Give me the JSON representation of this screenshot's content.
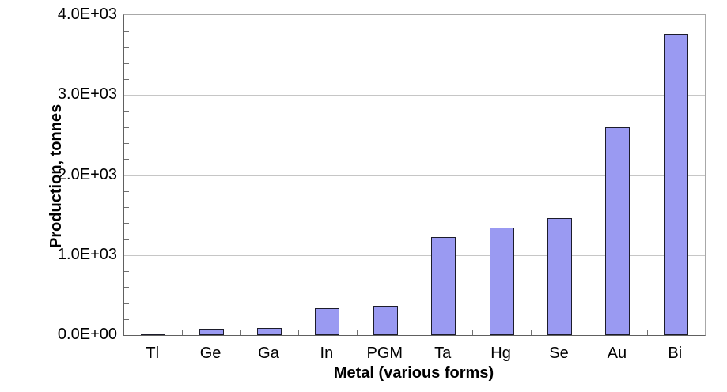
{
  "chart_data": {
    "type": "bar",
    "title": "",
    "categories": [
      "Tl",
      "Ge",
      "Ga",
      "In",
      "PGM",
      "Ta",
      "Hg",
      "Se",
      "Au",
      "Bi"
    ],
    "values": [
      20,
      75,
      90,
      335,
      365,
      1220,
      1340,
      1460,
      2600,
      3760
    ],
    "xlabel": "Metal (various forms)",
    "ylabel": "Production, tonnes",
    "ylim": [
      0,
      4000
    ],
    "y_major_step": 1000,
    "y_minor_step": 200,
    "y_tick_labels": [
      "0.0E+00",
      "1.0E+03",
      "2.0E+03",
      "3.0E+03",
      "4.0E+03"
    ],
    "grid": "horizontal-major",
    "legend": "none",
    "colors": {
      "bar_fill": "#9a9af2",
      "bar_border": "#1c1c2a",
      "gridline": "#c6c6c6",
      "axis": "#606060",
      "text": "#000000",
      "background": "#ffffff"
    }
  }
}
